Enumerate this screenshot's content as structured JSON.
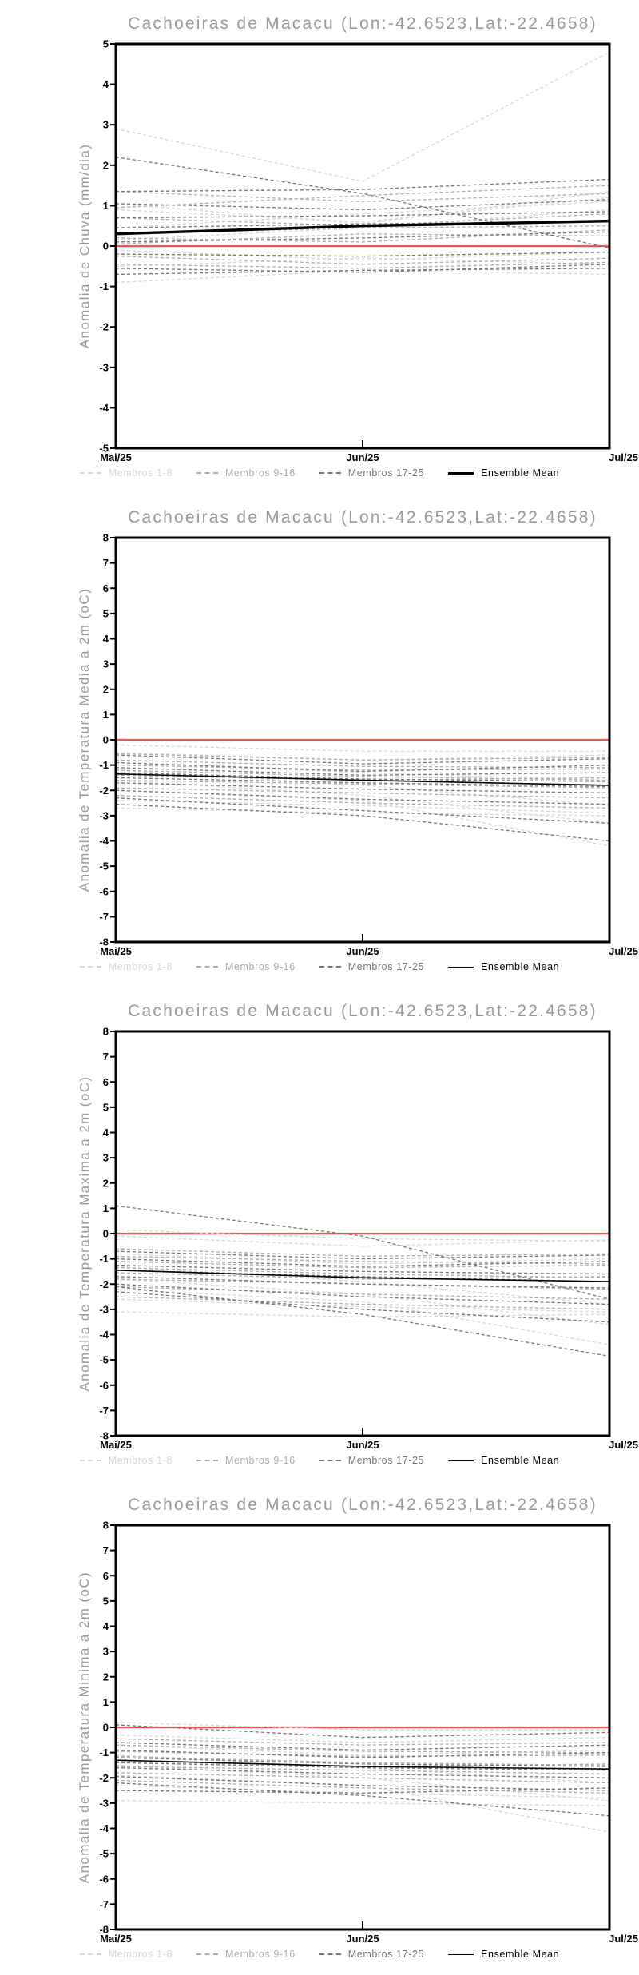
{
  "chart_data": [
    {
      "type": "line",
      "title": "Cachoeiras de Macacu (Lon:-42.6523,Lat:-22.4658)",
      "ylabel": "Anomalia de Chuva (mm/dia)",
      "xlabel": "",
      "x_tick_labels": [
        "Mai/25",
        "Jun/25",
        "Jul/25"
      ],
      "ylim": [
        -5,
        5
      ],
      "ytick_step": 1,
      "grid": false,
      "legend_position": "bottom",
      "zero_line": {
        "value": 0,
        "color": "#f65252"
      },
      "series": [
        {
          "name": "Membros 1-8",
          "color": "#d6d6d6",
          "dash": true,
          "width": 1.3,
          "members": [
            [
              2.9,
              1.6,
              4.8
            ],
            [
              1.05,
              0.55,
              1.35
            ],
            [
              0.9,
              0.6,
              1.2
            ],
            [
              0.45,
              0.8,
              1.1
            ],
            [
              0.15,
              0.45,
              0.9
            ],
            [
              -0.1,
              -0.35,
              -0.15
            ],
            [
              -0.5,
              -0.3,
              -0.45
            ],
            [
              -0.9,
              -0.6,
              -0.7
            ]
          ]
        },
        {
          "name": "Membros 9-16",
          "color": "#acacac",
          "dash": true,
          "width": 1.3,
          "members": [
            [
              1.35,
              1.1,
              1.3
            ],
            [
              0.95,
              1.25,
              1.5
            ],
            [
              0.7,
              0.5,
              0.8
            ],
            [
              0.3,
              0.45,
              0.5
            ],
            [
              0.2,
              0.1,
              0.4
            ],
            [
              0.05,
              0.3,
              0.25
            ],
            [
              -0.25,
              -0.45,
              -0.3
            ],
            [
              -0.45,
              -0.55,
              -0.4
            ]
          ]
        },
        {
          "name": "Membros 17-25",
          "color": "#747474",
          "dash": true,
          "width": 1.3,
          "members": [
            [
              2.2,
              1.3,
              -0.05
            ],
            [
              1.35,
              1.4,
              1.65
            ],
            [
              1.05,
              0.9,
              1.15
            ],
            [
              0.7,
              0.75,
              0.85
            ],
            [
              0.45,
              0.55,
              0.6
            ],
            [
              0.1,
              0.2,
              0.35
            ],
            [
              -0.2,
              -0.25,
              -0.15
            ],
            [
              -0.55,
              -0.65,
              -0.45
            ],
            [
              -0.7,
              -0.6,
              -0.55
            ]
          ]
        },
        {
          "name": "Ensemble Mean",
          "color": "#000000",
          "dash": false,
          "width": 3.4,
          "members": [
            [
              0.3,
              0.5,
              0.62
            ]
          ]
        }
      ]
    },
    {
      "type": "line",
      "title": "Cachoeiras de Macacu (Lon:-42.6523,Lat:-22.4658)",
      "ylabel": "Anomalia de Temperatura Media a 2m (oC)",
      "xlabel": "",
      "x_tick_labels": [
        "Mai/25",
        "Jun/25",
        "Jul/25"
      ],
      "ylim": [
        -8,
        8
      ],
      "ytick_step": 1,
      "grid": false,
      "legend_position": "bottom",
      "zero_line": {
        "value": 0,
        "color": "#f65252"
      },
      "series": [
        {
          "name": "Membros 1-8",
          "color": "#d6d6d6",
          "dash": true,
          "width": 1.3,
          "members": [
            [
              -0.2,
              -0.45,
              -0.45
            ],
            [
              -0.5,
              -0.8,
              -0.6
            ],
            [
              -0.9,
              -1.3,
              -1.6
            ],
            [
              -1.2,
              -1.8,
              -2.6
            ],
            [
              -1.6,
              -2.2,
              -3.3
            ],
            [
              -2.0,
              -2.4,
              -4.2
            ],
            [
              -2.4,
              -2.6,
              -2.9
            ],
            [
              -2.7,
              -2.9,
              -3.0
            ]
          ]
        },
        {
          "name": "Membros 9-16",
          "color": "#acacac",
          "dash": true,
          "width": 1.3,
          "members": [
            [
              -0.55,
              -0.8,
              -0.7
            ],
            [
              -0.8,
              -1.05,
              -1.1
            ],
            [
              -1.0,
              -1.2,
              -1.15
            ],
            [
              -1.2,
              -1.45,
              -1.6
            ],
            [
              -1.4,
              -1.6,
              -1.5
            ],
            [
              -1.6,
              -1.75,
              -1.9
            ],
            [
              -1.9,
              -2.1,
              -2.3
            ],
            [
              -2.2,
              -2.5,
              -2.7
            ]
          ]
        },
        {
          "name": "Membros 17-25",
          "color": "#747474",
          "dash": true,
          "width": 1.3,
          "members": [
            [
              -0.6,
              -0.95,
              -0.75
            ],
            [
              -0.9,
              -1.25,
              -1.0
            ],
            [
              -1.1,
              -1.4,
              -1.3
            ],
            [
              -1.3,
              -1.55,
              -1.65
            ],
            [
              -1.5,
              -1.7,
              -1.85
            ],
            [
              -1.7,
              -1.95,
              -2.1
            ],
            [
              -2.0,
              -2.35,
              -2.55
            ],
            [
              -2.3,
              -2.8,
              -3.3
            ],
            [
              -2.55,
              -3.0,
              -4.0
            ]
          ]
        },
        {
          "name": "Ensemble Mean",
          "color": "#000000",
          "dash": false,
          "width": 1.6,
          "members": [
            [
              -1.35,
              -1.6,
              -1.8
            ]
          ]
        }
      ]
    },
    {
      "type": "line",
      "title": "Cachoeiras de Macacu (Lon:-42.6523,Lat:-22.4658)",
      "ylabel": "Anomalia de Temperatura Maxima a 2m (oC)",
      "xlabel": "",
      "x_tick_labels": [
        "Mai/25",
        "Jun/25",
        "Jul/25"
      ],
      "ylim": [
        -8,
        8
      ],
      "ytick_step": 1,
      "grid": false,
      "legend_position": "bottom",
      "zero_line": {
        "value": 0,
        "color": "#f65252"
      },
      "series": [
        {
          "name": "Membros 1-8",
          "color": "#d6d6d6",
          "dash": true,
          "width": 1.3,
          "members": [
            [
              0.15,
              -0.2,
              -0.3
            ],
            [
              -0.1,
              -0.5,
              -0.25
            ],
            [
              -0.8,
              -1.2,
              -1.0
            ],
            [
              -1.3,
              -1.9,
              -2.8
            ],
            [
              -1.8,
              -2.4,
              -3.6
            ],
            [
              -2.2,
              -2.7,
              -4.4
            ],
            [
              -2.6,
              -2.9,
              -3.1
            ],
            [
              -3.1,
              -3.3,
              -3.2
            ]
          ]
        },
        {
          "name": "Membros 9-16",
          "color": "#acacac",
          "dash": true,
          "width": 1.3,
          "members": [
            [
              -0.6,
              -0.9,
              -0.8
            ],
            [
              -0.9,
              -1.1,
              -1.2
            ],
            [
              -1.1,
              -1.35,
              -1.25
            ],
            [
              -1.35,
              -1.6,
              -1.75
            ],
            [
              -1.55,
              -1.8,
              -1.7
            ],
            [
              -1.8,
              -2.0,
              -2.2
            ],
            [
              -2.1,
              -2.4,
              -2.6
            ],
            [
              -2.5,
              -2.8,
              -3.0
            ]
          ]
        },
        {
          "name": "Membros 17-25",
          "color": "#747474",
          "dash": true,
          "width": 1.3,
          "members": [
            [
              1.1,
              -0.1,
              -2.6
            ],
            [
              -0.7,
              -1.0,
              -0.85
            ],
            [
              -1.0,
              -1.3,
              -1.1
            ],
            [
              -1.25,
              -1.5,
              -1.6
            ],
            [
              -1.45,
              -1.7,
              -1.9
            ],
            [
              -1.7,
              -2.0,
              -2.15
            ],
            [
              -2.0,
              -2.5,
              -2.8
            ],
            [
              -2.3,
              -3.0,
              -3.5
            ],
            [
              -2.1,
              -3.2,
              -4.85
            ]
          ]
        },
        {
          "name": "Ensemble Mean",
          "color": "#000000",
          "dash": false,
          "width": 1.6,
          "members": [
            [
              -1.45,
              -1.75,
              -1.9
            ]
          ]
        }
      ]
    },
    {
      "type": "line",
      "title": "Cachoeiras de Macacu (Lon:-42.6523,Lat:-22.4658)",
      "ylabel": "Anomalia de Temperatura Minima a 2m (oC)",
      "xlabel": "",
      "x_tick_labels": [
        "Mai/25",
        "Jun/25",
        "Jul/25"
      ],
      "ylim": [
        -8,
        8
      ],
      "ytick_step": 1,
      "grid": false,
      "legend_position": "bottom",
      "zero_line": {
        "value": 0,
        "color": "#f65252"
      },
      "series": [
        {
          "name": "Membros 1-8",
          "color": "#d6d6d6",
          "dash": true,
          "width": 1.3,
          "members": [
            [
              0.2,
              -0.1,
              -0.1
            ],
            [
              -0.3,
              -0.6,
              -0.4
            ],
            [
              -0.7,
              -1.1,
              -0.9
            ],
            [
              -1.1,
              -1.6,
              -2.2
            ],
            [
              -1.5,
              -2.0,
              -2.9
            ],
            [
              -1.9,
              -2.3,
              -4.15
            ],
            [
              -2.3,
              -2.6,
              -2.8
            ],
            [
              -2.9,
              -3.0,
              -3.1
            ]
          ]
        },
        {
          "name": "Membros 9-16",
          "color": "#acacac",
          "dash": true,
          "width": 1.3,
          "members": [
            [
              -0.45,
              -0.7,
              -0.6
            ],
            [
              -0.7,
              -0.95,
              -1.0
            ],
            [
              -0.95,
              -1.15,
              -1.1
            ],
            [
              -1.15,
              -1.4,
              -1.5
            ],
            [
              -1.35,
              -1.55,
              -1.45
            ],
            [
              -1.55,
              -1.7,
              -1.85
            ],
            [
              -1.8,
              -2.0,
              -2.2
            ],
            [
              -2.1,
              -2.4,
              -2.6
            ]
          ]
        },
        {
          "name": "Membros 17-25",
          "color": "#747474",
          "dash": true,
          "width": 1.3,
          "members": [
            [
              0.1,
              -0.4,
              -0.2
            ],
            [
              -0.6,
              -0.9,
              -0.7
            ],
            [
              -0.9,
              -1.2,
              -1.0
            ],
            [
              -1.2,
              -1.45,
              -1.55
            ],
            [
              -1.4,
              -1.6,
              -1.7
            ],
            [
              -1.6,
              -1.85,
              -2.0
            ],
            [
              -1.95,
              -2.3,
              -2.5
            ],
            [
              -2.2,
              -2.7,
              -3.5
            ],
            [
              -2.5,
              -2.6,
              -2.4
            ]
          ]
        },
        {
          "name": "Ensemble Mean",
          "color": "#000000",
          "dash": false,
          "width": 1.6,
          "members": [
            [
              -1.3,
              -1.55,
              -1.65
            ]
          ]
        }
      ]
    }
  ]
}
